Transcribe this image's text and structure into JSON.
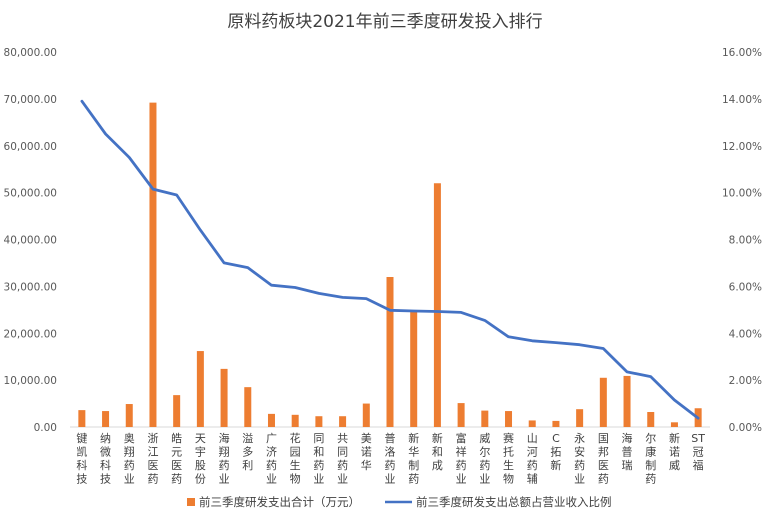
{
  "chart_data": {
    "type": "bar",
    "title": "原料药板块2021年前三季度研发投入排行",
    "categories": [
      "键凯科技",
      "纳微科技",
      "奥翔药业",
      "浙江医药",
      "皓元医药",
      "天宇股份",
      "海翔药业",
      "溢多利",
      "广济药业",
      "花园生物",
      "同和药业",
      "共同药业",
      "美诺华",
      "普洛药业",
      "新华制药",
      "新和成",
      "富祥药业",
      "威尔药业",
      "赛托生物",
      "山河药辅",
      "C拓新",
      "永安药业",
      "国邦医药",
      "海普瑞",
      "尔康制药",
      "新诺威",
      "ST冠福"
    ],
    "series": [
      {
        "name": "前三季度研发支出合计（万元）",
        "type": "bar",
        "axis": "left",
        "color": "#ED7D31",
        "values": [
          3600,
          3400,
          4900,
          69200,
          6800,
          16200,
          12400,
          8500,
          2800,
          2600,
          2300,
          2300,
          5000,
          32000,
          24800,
          52000,
          5100,
          3500,
          3400,
          1400,
          1300,
          3800,
          10500,
          10900,
          3200,
          1000,
          4000
        ]
      },
      {
        "name": "前三季度研发支出总额占营业收入比例",
        "type": "line",
        "axis": "right",
        "color": "#4472C4",
        "values": [
          0.139,
          0.125,
          0.115,
          0.1015,
          0.099,
          0.084,
          0.07,
          0.068,
          0.0605,
          0.0595,
          0.057,
          0.0553,
          0.0548,
          0.0498,
          0.0495,
          0.0493,
          0.0489,
          0.0455,
          0.0385,
          0.0368,
          0.036,
          0.0351,
          0.0335,
          0.0235,
          0.0215,
          0.0115,
          0.0038
        ]
      }
    ],
    "y_left": {
      "min": 0,
      "max": 80000,
      "step": 10000,
      "tick_labels": [
        "0.00",
        "10,000.00",
        "20,000.00",
        "30,000.00",
        "40,000.00",
        "50,000.00",
        "60,000.00",
        "70,000.00",
        "80,000.00"
      ]
    },
    "y_right": {
      "min": 0,
      "max": 0.16,
      "step": 0.02,
      "tick_labels": [
        "0.00%",
        "2.00%",
        "4.00%",
        "6.00%",
        "8.00%",
        "10.00%",
        "12.00%",
        "14.00%",
        "16.00%"
      ]
    },
    "grid": false,
    "legend": {
      "position": "bottom",
      "items": [
        "前三季度研发支出合计（万元）",
        "前三季度研发支出总额占营业收入比例"
      ]
    }
  }
}
